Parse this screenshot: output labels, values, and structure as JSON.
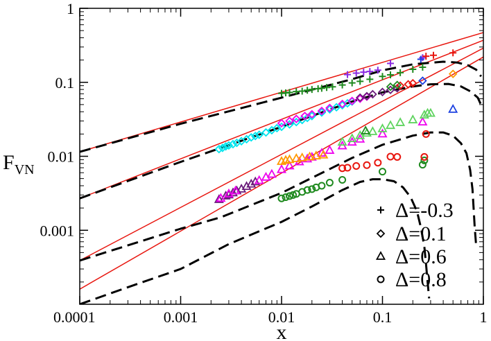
{
  "chart_data": {
    "type": "scatter",
    "xscale": "log",
    "yscale": "log",
    "xlim": [
      0.0001,
      1
    ],
    "ylim": [
      0.0001,
      1
    ],
    "xlabel": "x",
    "ylabel_main": "F",
    "ylabel_sub": "VN",
    "xticks": [
      {
        "value": 0.0001,
        "label": "0.0001"
      },
      {
        "value": 0.001,
        "label": "0.001"
      },
      {
        "value": 0.01,
        "label": "0.01"
      },
      {
        "value": 0.1,
        "label": "0.1"
      },
      {
        "value": 1,
        "label": "1"
      }
    ],
    "yticks": [
      {
        "value": 0.001,
        "label": "0.001"
      },
      {
        "value": 0.01,
        "label": "0.01"
      },
      {
        "value": 0.1,
        "label": "0.1"
      },
      {
        "value": 1,
        "label": "1"
      }
    ],
    "legend": [
      {
        "marker": "plus",
        "label": "Δ=-0.3"
      },
      {
        "marker": "diamond",
        "label": "Δ=0.1"
      },
      {
        "marker": "triangle",
        "label": "Δ=0.6"
      },
      {
        "marker": "circle",
        "label": "Δ=0.8"
      }
    ],
    "fit_lines": [
      {
        "name": "power-law Δ=-0.3",
        "color": "#e8160f",
        "points": [
          [
            0.0001,
            0.0115
          ],
          [
            1,
            0.47
          ]
        ]
      },
      {
        "name": "power-law Δ=0.1",
        "color": "#e8160f",
        "points": [
          [
            0.0001,
            0.0027
          ],
          [
            1,
            0.37
          ]
        ]
      },
      {
        "name": "power-law Δ=0.6",
        "color": "#e8160f",
        "points": [
          [
            0.0001,
            0.00039
          ],
          [
            1,
            0.29
          ]
        ]
      },
      {
        "name": "power-law Δ=0.8",
        "color": "#e8160f",
        "points": [
          [
            0.0001,
            0.00016
          ],
          [
            1,
            0.22
          ]
        ]
      }
    ],
    "theory_curves": [
      {
        "name": "theory Δ=-0.3",
        "color": "#000000",
        "points": [
          [
            0.0001,
            0.0115
          ],
          [
            0.001,
            0.0275
          ],
          [
            0.01,
            0.062
          ],
          [
            0.05,
            0.11
          ],
          [
            0.1,
            0.145
          ],
          [
            0.2,
            0.175
          ],
          [
            0.4,
            0.19
          ],
          [
            0.55,
            0.185
          ],
          [
            0.7,
            0.17
          ],
          [
            0.85,
            0.148
          ],
          [
            0.95,
            0.12
          ]
        ]
      },
      {
        "name": "theory Δ=0.1",
        "color": "#000000",
        "points": [
          [
            0.0001,
            0.0027
          ],
          [
            0.001,
            0.0084
          ],
          [
            0.01,
            0.025
          ],
          [
            0.05,
            0.055
          ],
          [
            0.1,
            0.073
          ],
          [
            0.2,
            0.088
          ],
          [
            0.3,
            0.094
          ],
          [
            0.45,
            0.095
          ],
          [
            0.6,
            0.088
          ],
          [
            0.75,
            0.075
          ],
          [
            0.88,
            0.062
          ],
          [
            0.96,
            0.048
          ]
        ]
      },
      {
        "name": "theory Δ=0.6",
        "color": "#000000",
        "points": [
          [
            0.0001,
            0.00039
          ],
          [
            0.001,
            0.00105
          ],
          [
            0.0025,
            0.0015
          ],
          [
            0.01,
            0.0032
          ],
          [
            0.05,
            0.0095
          ],
          [
            0.1,
            0.0143
          ],
          [
            0.2,
            0.019
          ],
          [
            0.3,
            0.021
          ],
          [
            0.4,
            0.021
          ],
          [
            0.5,
            0.019
          ],
          [
            0.6,
            0.015
          ],
          [
            0.68,
            0.011
          ],
          [
            0.74,
            0.0065
          ],
          [
            0.78,
            0.0036
          ],
          [
            0.8,
            0.002
          ],
          [
            0.82,
            0.0011
          ],
          [
            0.85,
            0.0006
          ]
        ]
      },
      {
        "name": "theory Δ=0.8",
        "color": "#000000",
        "points": [
          [
            0.0001,
            0.0001
          ],
          [
            0.0003,
            0.00017
          ],
          [
            0.001,
            0.0003
          ],
          [
            0.003,
            0.00065
          ],
          [
            0.01,
            0.0013
          ],
          [
            0.02,
            0.0021
          ],
          [
            0.04,
            0.0035
          ],
          [
            0.06,
            0.0045
          ],
          [
            0.08,
            0.0049
          ],
          [
            0.1,
            0.0049
          ],
          [
            0.13,
            0.0046
          ],
          [
            0.16,
            0.0038
          ],
          [
            0.19,
            0.0028
          ],
          [
            0.22,
            0.0018
          ],
          [
            0.24,
            0.0011
          ],
          [
            0.26,
            0.0006
          ],
          [
            0.27,
            0.00035
          ],
          [
            0.28,
            0.0002
          ],
          [
            0.29,
            0.00012
          ]
        ]
      }
    ],
    "series": [
      {
        "name": "Δ=-0.3 green",
        "marker": "plus",
        "color": "#1f8a1f",
        "points": [
          [
            0.01,
            0.071
          ],
          [
            0.011,
            0.072
          ],
          [
            0.012,
            0.073
          ],
          [
            0.014,
            0.075
          ],
          [
            0.016,
            0.076
          ],
          [
            0.018,
            0.078
          ],
          [
            0.02,
            0.08
          ],
          [
            0.023,
            0.082
          ],
          [
            0.025,
            0.083
          ],
          [
            0.028,
            0.085
          ],
          [
            0.032,
            0.087
          ],
          [
            0.04,
            0.092
          ],
          [
            0.05,
            0.098
          ],
          [
            0.06,
            0.103
          ],
          [
            0.075,
            0.11
          ],
          [
            0.1,
            0.12
          ],
          [
            0.12,
            0.126
          ],
          [
            0.15,
            0.135
          ],
          [
            0.2,
            0.15
          ],
          [
            0.25,
            0.16
          ]
        ]
      },
      {
        "name": "Δ=-0.3 purple",
        "marker": "plus",
        "color": "#8a2be2",
        "points": [
          [
            0.045,
            0.127
          ],
          [
            0.055,
            0.133
          ],
          [
            0.065,
            0.137
          ],
          [
            0.075,
            0.14
          ],
          [
            0.09,
            0.146
          ],
          [
            0.12,
            0.18
          ],
          [
            0.25,
            0.215
          ]
        ]
      },
      {
        "name": "Δ=-0.3 red",
        "marker": "plus",
        "color": "#e8160f",
        "points": [
          [
            0.27,
            0.225
          ],
          [
            0.32,
            0.232
          ],
          [
            0.5,
            0.25
          ]
        ]
      },
      {
        "name": "Δ=-0.3 blue",
        "marker": "plus",
        "color": "#1a3fe0",
        "points": [
          [
            0.24,
            0.205
          ]
        ]
      },
      {
        "name": "Δ=0.1 cyan",
        "marker": "diamond",
        "color": "#00e5ee",
        "points": [
          [
            0.0024,
            0.0125
          ],
          [
            0.0026,
            0.013
          ],
          [
            0.0028,
            0.0136
          ],
          [
            0.003,
            0.014
          ],
          [
            0.0033,
            0.0146
          ],
          [
            0.0036,
            0.0152
          ],
          [
            0.004,
            0.016
          ],
          [
            0.0045,
            0.017
          ],
          [
            0.005,
            0.018
          ],
          [
            0.0055,
            0.0188
          ],
          [
            0.006,
            0.0195
          ],
          [
            0.007,
            0.021
          ],
          [
            0.008,
            0.0225
          ],
          [
            0.009,
            0.024
          ],
          [
            0.01,
            0.025
          ],
          [
            0.012,
            0.027
          ],
          [
            0.014,
            0.029
          ],
          [
            0.016,
            0.031
          ],
          [
            0.018,
            0.033
          ],
          [
            0.02,
            0.035
          ],
          [
            0.025,
            0.039
          ],
          [
            0.03,
            0.043
          ],
          [
            0.035,
            0.046
          ],
          [
            0.04,
            0.049
          ],
          [
            0.045,
            0.052
          ],
          [
            0.05,
            0.055
          ]
        ]
      },
      {
        "name": "Δ=0.1 magenta",
        "marker": "diamond",
        "color": "#ee00ee",
        "points": [
          [
            0.01,
            0.028
          ],
          [
            0.012,
            0.03
          ],
          [
            0.014,
            0.032
          ],
          [
            0.017,
            0.035
          ],
          [
            0.02,
            0.037
          ],
          [
            0.025,
            0.041
          ],
          [
            0.03,
            0.045
          ],
          [
            0.04,
            0.051
          ],
          [
            0.05,
            0.056
          ],
          [
            0.06,
            0.06
          ],
          [
            0.07,
            0.064
          ]
        ]
      },
      {
        "name": "Δ=0.1 purple",
        "marker": "diamond",
        "color": "#6a1b7a",
        "points": [
          [
            0.06,
            0.062
          ],
          [
            0.07,
            0.065
          ],
          [
            0.08,
            0.069
          ],
          [
            0.1,
            0.074
          ],
          [
            0.12,
            0.079
          ],
          [
            0.14,
            0.083
          ]
        ]
      },
      {
        "name": "Δ=0.1 red",
        "marker": "diamond",
        "color": "#e8160f",
        "points": [
          [
            0.15,
            0.09
          ],
          [
            0.18,
            0.094
          ],
          [
            0.2,
            0.097
          ]
        ]
      },
      {
        "name": "Δ=0.1 green",
        "marker": "diamond",
        "color": "#1f8a1f",
        "points": [
          [
            0.12,
            0.087
          ],
          [
            0.14,
            0.092
          ]
        ]
      },
      {
        "name": "Δ=0.1 orange",
        "marker": "diamond",
        "color": "#ff9900",
        "points": [
          [
            0.5,
            0.13
          ]
        ]
      },
      {
        "name": "Δ=0.1 blue",
        "marker": "diamond",
        "color": "#1a3fe0",
        "points": [
          [
            0.25,
            0.105
          ]
        ]
      },
      {
        "name": "Δ=0.6 purple",
        "marker": "triangle",
        "color": "#6a1b7a",
        "points": [
          [
            0.0024,
            0.0026
          ],
          [
            0.0028,
            0.0029
          ],
          [
            0.003,
            0.003
          ],
          [
            0.0033,
            0.0032
          ],
          [
            0.0036,
            0.0034
          ],
          [
            0.004,
            0.0036
          ],
          [
            0.0045,
            0.0039
          ],
          [
            0.005,
            0.0042
          ],
          [
            0.0055,
            0.0045
          ]
        ]
      },
      {
        "name": "Δ=0.6 magenta",
        "marker": "triangle",
        "color": "#ee00ee",
        "points": [
          [
            0.0025,
            0.0027
          ],
          [
            0.003,
            0.0031
          ],
          [
            0.0035,
            0.0034
          ],
          [
            0.006,
            0.0047
          ],
          [
            0.007,
            0.0052
          ],
          [
            0.008,
            0.0057
          ],
          [
            0.01,
            0.0066
          ],
          [
            0.012,
            0.0074
          ],
          [
            0.015,
            0.0084
          ],
          [
            0.018,
            0.0092
          ],
          [
            0.02,
            0.0097
          ],
          [
            0.025,
            0.011
          ],
          [
            0.03,
            0.012
          ],
          [
            0.04,
            0.0138
          ],
          [
            0.05,
            0.0155
          ],
          [
            0.06,
            0.017
          ],
          [
            0.1,
            0.02
          ],
          [
            0.25,
            0.029
          ]
        ]
      },
      {
        "name": "Δ=0.6 orange",
        "marker": "triangle",
        "color": "#ff9900",
        "points": [
          [
            0.01,
            0.0085
          ],
          [
            0.011,
            0.0088
          ],
          [
            0.012,
            0.009
          ],
          [
            0.014,
            0.0093
          ],
          [
            0.016,
            0.0095
          ],
          [
            0.019,
            0.0098
          ],
          [
            0.022,
            0.0101
          ],
          [
            0.026,
            0.0104
          ]
        ]
      },
      {
        "name": "Δ=0.6 green",
        "marker": "triangle",
        "color": "#5fd35f",
        "points": [
          [
            0.04,
            0.0155
          ],
          [
            0.05,
            0.0173
          ],
          [
            0.06,
            0.019
          ],
          [
            0.07,
            0.0205
          ],
          [
            0.08,
            0.0215
          ],
          [
            0.1,
            0.0235
          ],
          [
            0.12,
            0.026
          ],
          [
            0.15,
            0.0285
          ],
          [
            0.2,
            0.031
          ],
          [
            0.26,
            0.036
          ],
          [
            0.28,
            0.038
          ],
          [
            0.3,
            0.038
          ]
        ]
      },
      {
        "name": "Δ=0.6 blue",
        "marker": "triangle",
        "color": "#1a3fe0",
        "points": [
          [
            0.5,
            0.043
          ]
        ]
      },
      {
        "name": "Δ=0.6 dark green",
        "marker": "triangle",
        "color": "#1f8a1f",
        "points": [
          [
            0.068,
            0.022
          ]
        ]
      },
      {
        "name": "Δ=0.8 dark green",
        "marker": "circle",
        "color": "#1f8a1f",
        "points": [
          [
            0.01,
            0.0027
          ],
          [
            0.011,
            0.0028
          ],
          [
            0.012,
            0.0029
          ],
          [
            0.013,
            0.003
          ],
          [
            0.014,
            0.0031
          ],
          [
            0.016,
            0.0033
          ],
          [
            0.018,
            0.0035
          ],
          [
            0.02,
            0.0036
          ],
          [
            0.022,
            0.0038
          ],
          [
            0.025,
            0.004
          ],
          [
            0.03,
            0.0044
          ],
          [
            0.04,
            0.0048
          ],
          [
            0.1,
            0.0062
          ],
          [
            0.25,
            0.0077
          ],
          [
            0.26,
            0.0088
          ]
        ]
      },
      {
        "name": "Δ=0.8 red",
        "marker": "circle",
        "color": "#e8160f",
        "points": [
          [
            0.04,
            0.0069
          ],
          [
            0.045,
            0.007
          ],
          [
            0.055,
            0.0074
          ],
          [
            0.07,
            0.0076
          ],
          [
            0.09,
            0.0082
          ],
          [
            0.12,
            0.0099
          ],
          [
            0.14,
            0.0098
          ],
          [
            0.26,
            0.0098
          ],
          [
            0.27,
            0.02
          ]
        ]
      }
    ]
  }
}
